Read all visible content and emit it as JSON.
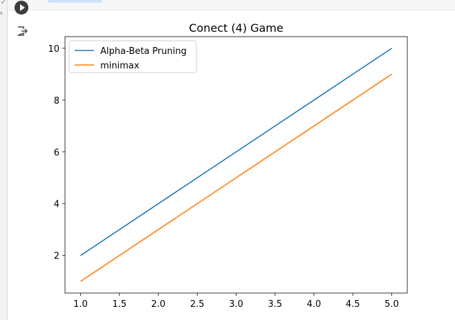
{
  "chart_data": {
    "type": "line",
    "title": "Conect (4) Game",
    "xlabel": "",
    "ylabel": "",
    "x": [
      1,
      2,
      3,
      4,
      5
    ],
    "series": [
      {
        "name": "Alpha-Beta Pruning",
        "values": [
          2,
          4,
          6,
          8,
          10
        ],
        "color": "#1f77b4"
      },
      {
        "name": "minimax",
        "values": [
          1,
          3,
          5,
          7,
          9
        ],
        "color": "#ff7f0e"
      }
    ],
    "xlim": [
      0.8,
      5.2
    ],
    "ylim": [
      0.55,
      10.45
    ],
    "xticks": [
      "1.0",
      "1.5",
      "2.0",
      "2.5",
      "3.0",
      "3.5",
      "4.0",
      "4.5",
      "5.0"
    ],
    "yticks": [
      "2",
      "4",
      "6",
      "8",
      "10"
    ],
    "legend": "upper-left",
    "grid": false
  },
  "ui": {
    "run_button": "play-icon",
    "output_icon": "output-arrow-icon"
  }
}
